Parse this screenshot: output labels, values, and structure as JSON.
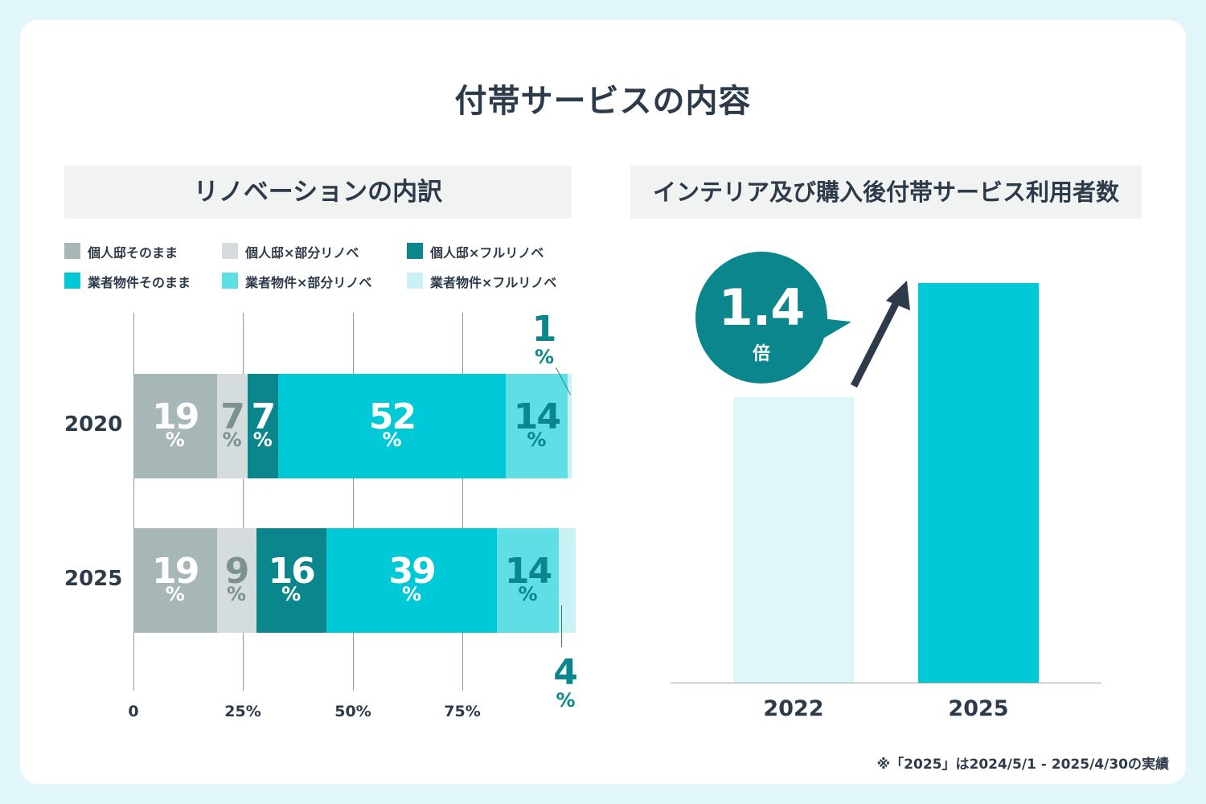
{
  "title": "付帯サービスの内容",
  "colors": {
    "background": "#e0f6f8",
    "card": "#ffffff",
    "text": "#2d3a4a",
    "panel_title_bg": "#f1f3f3",
    "bubble": "#0b868d",
    "arrow": "#2d3a4a"
  },
  "left_panel": {
    "title": "リノベーションの内訳",
    "legend": [
      {
        "label": "個人邸そのまま",
        "color": "#a7b7b8"
      },
      {
        "label": "個人邸×部分リノベ",
        "color": "#d4dcdd"
      },
      {
        "label": "個人邸×フルリノベ",
        "color": "#0b868d"
      },
      {
        "label": "業者物件そのまま",
        "color": "#00c9d7"
      },
      {
        "label": "業者物件×部分リノベ",
        "color": "#5fdfe5"
      },
      {
        "label": "業者物件×フルリノベ",
        "color": "#c9f2f5"
      }
    ],
    "rows": [
      {
        "year": "2020",
        "pct_symbol": "%",
        "segments": [
          {
            "value": 19,
            "label": "19",
            "color": "#a7b7b8",
            "text_color": "#ffffff"
          },
          {
            "value": 7,
            "label": "7",
            "color": "#d4dcdd",
            "text_color": "#7d9092"
          },
          {
            "value": 7,
            "label": "7",
            "color": "#0b868d",
            "text_color": "#ffffff"
          },
          {
            "value": 52,
            "label": "52",
            "color": "#00c9d7",
            "text_color": "#ffffff"
          },
          {
            "value": 14,
            "label": "14",
            "color": "#5fdfe5",
            "text_color": "#0b868d"
          },
          {
            "value": 1,
            "label": "1",
            "color": "#c9f2f5",
            "text_color": "#0b868d",
            "callout": true
          }
        ]
      },
      {
        "year": "2025",
        "pct_symbol": "%",
        "segments": [
          {
            "value": 19,
            "label": "19",
            "color": "#a7b7b8",
            "text_color": "#ffffff"
          },
          {
            "value": 9,
            "label": "9",
            "color": "#d4dcdd",
            "text_color": "#7d9092"
          },
          {
            "value": 16,
            "label": "16",
            "color": "#0b868d",
            "text_color": "#ffffff"
          },
          {
            "value": 39,
            "label": "39",
            "color": "#00c9d7",
            "text_color": "#ffffff"
          },
          {
            "value": 14,
            "label": "14",
            "color": "#5fdfe5",
            "text_color": "#0b868d"
          },
          {
            "value": 4,
            "label": "4",
            "color": "#c9f2f5",
            "text_color": "#0b868d",
            "callout": true
          }
        ]
      }
    ],
    "x_ticks": [
      "0",
      "25%",
      "50%",
      "75%"
    ]
  },
  "right_panel": {
    "title": "インテリア及び購入後付帯サービス利用者数",
    "multiplier": "1.4",
    "multiplier_unit": "倍"
  },
  "footnote": "※「2025」は2024/5/1 - 2025/4/30の実績",
  "chart_data": [
    {
      "type": "bar",
      "orientation": "horizontal-stacked-100",
      "title": "リノベーションの内訳",
      "categories": [
        "2020",
        "2025"
      ],
      "series": [
        {
          "name": "個人邸そのまま",
          "values": [
            19,
            19
          ]
        },
        {
          "name": "個人邸×部分リノベ",
          "values": [
            7,
            9
          ]
        },
        {
          "name": "個人邸×フルリノベ",
          "values": [
            7,
            16
          ]
        },
        {
          "name": "業者物件そのまま",
          "values": [
            52,
            39
          ]
        },
        {
          "name": "業者物件×部分リノベ",
          "values": [
            14,
            14
          ]
        },
        {
          "name": "業者物件×フルリノベ",
          "values": [
            1,
            4
          ]
        }
      ],
      "xlim": [
        0,
        100
      ],
      "x_ticks": [
        0,
        25,
        50,
        75
      ],
      "unit": "%"
    },
    {
      "type": "bar",
      "title": "インテリア及び購入後付帯サービス利用者数",
      "categories": [
        "2022",
        "2025"
      ],
      "values": [
        1,
        1.4
      ],
      "colors": [
        "#e0f6f8",
        "#00c9d7"
      ],
      "annotation": "1.4倍"
    }
  ]
}
